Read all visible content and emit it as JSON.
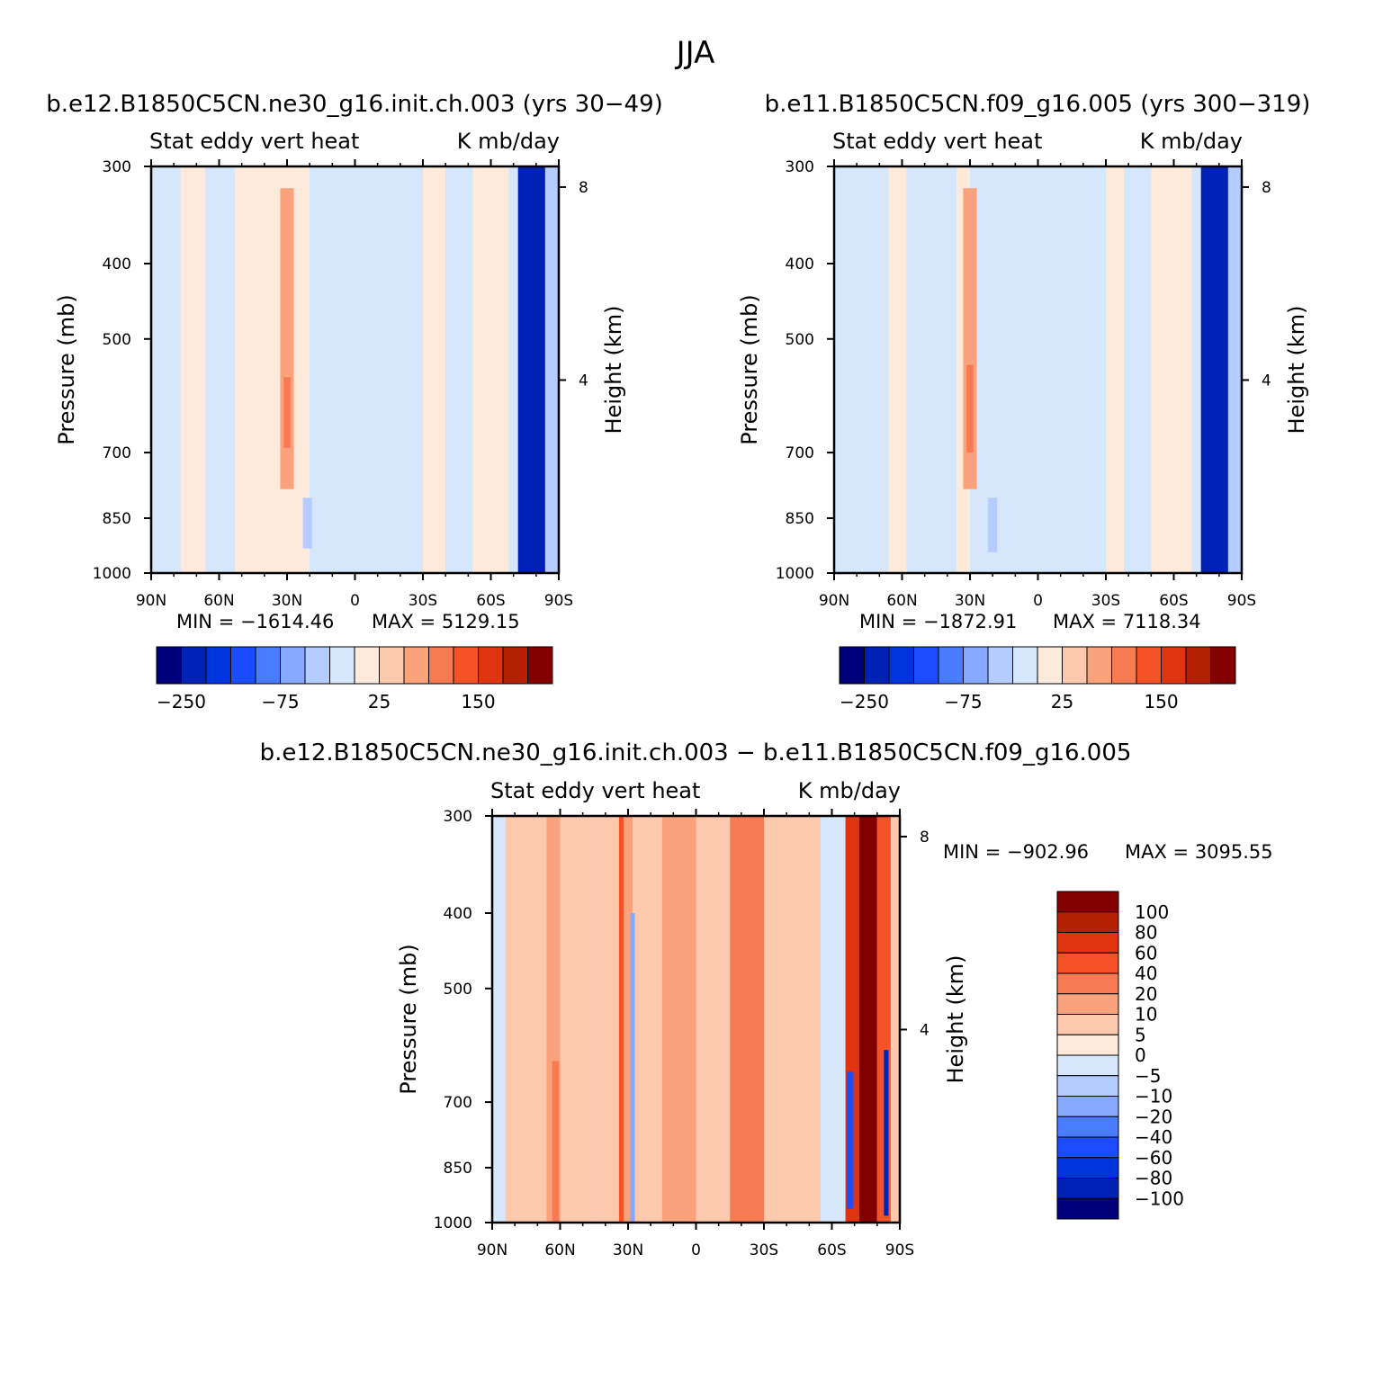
{
  "figure": {
    "title": "JJA"
  },
  "chart_data": [
    {
      "type": "heatmap",
      "title": "b.e12.B1850C5CN.ne30_g16.init.ch.003 (yrs 30−49)",
      "subtitle_left": "Stat eddy vert heat",
      "subtitle_right": "K mb/day",
      "xlabel": "",
      "ylabel": "Pressure (mb)",
      "ylabel_right": "Height (km)",
      "x_ticks": [
        "90N",
        "60N",
        "30N",
        "0",
        "30S",
        "60S",
        "90S"
      ],
      "y_ticks": [
        300,
        400,
        500,
        700,
        850,
        1000
      ],
      "y_ticks_right": [
        8,
        4
      ],
      "ylim": [
        1000,
        300
      ],
      "min_label": "MIN = −1614.46",
      "max_label": "MAX = 5129.15",
      "min": -1614.46,
      "max": 5129.15,
      "colorbar_levels": [
        -250,
        -200,
        -150,
        -100,
        -75,
        -50,
        -25,
        0,
        25,
        50,
        75,
        100,
        150,
        200,
        250
      ],
      "colorbar_labels": [
        "−250",
        "−75",
        "25",
        "150"
      ],
      "bands": [
        {
          "lat0": -90,
          "lat1": -77,
          "level": -5
        },
        {
          "lat0": -77,
          "lat1": -66,
          "level": 5
        },
        {
          "lat0": -66,
          "lat1": -53,
          "level": -5
        },
        {
          "lat0": -53,
          "lat1": -20,
          "level": 5
        },
        {
          "lat0": -20,
          "lat1": -10,
          "level": -5
        },
        {
          "lat0": -10,
          "lat1": 30,
          "level": -5
        },
        {
          "lat0": 30,
          "lat1": 40,
          "level": 5
        },
        {
          "lat0": 40,
          "lat1": 52,
          "level": -5
        },
        {
          "lat0": 52,
          "lat1": 68,
          "level": 5
        },
        {
          "lat0": 68,
          "lat1": 72,
          "level": -25
        },
        {
          "lat0": 72,
          "lat1": 84,
          "level": -250
        },
        {
          "lat0": 84,
          "lat1": 90,
          "level": -50
        }
      ],
      "features": [
        {
          "lat": -30,
          "p0": 320,
          "p1": 780,
          "width": 6,
          "level": 50
        },
        {
          "lat": -30,
          "p0": 560,
          "p1": 690,
          "width": 3,
          "level": 75
        },
        {
          "lat": -21,
          "p0": 800,
          "p1": 930,
          "width": 4,
          "level": -50
        }
      ]
    },
    {
      "type": "heatmap",
      "title": "b.e11.B1850C5CN.f09_g16.005 (yrs 300−319)",
      "subtitle_left": "Stat eddy vert heat",
      "subtitle_right": "K mb/day",
      "xlabel": "",
      "ylabel": "Pressure (mb)",
      "ylabel_right": "Height (km)",
      "x_ticks": [
        "90N",
        "60N",
        "30N",
        "0",
        "30S",
        "60S",
        "90S"
      ],
      "y_ticks": [
        300,
        400,
        500,
        700,
        850,
        1000
      ],
      "y_ticks_right": [
        8,
        4
      ],
      "ylim": [
        1000,
        300
      ],
      "min_label": "MIN = −1872.91",
      "max_label": "MAX = 7118.34",
      "min": -1872.91,
      "max": 7118.34,
      "colorbar_levels": [
        -250,
        -200,
        -150,
        -100,
        -75,
        -50,
        -25,
        0,
        25,
        50,
        75,
        100,
        150,
        200,
        250
      ],
      "colorbar_labels": [
        "−250",
        "−75",
        "25",
        "150"
      ],
      "bands": [
        {
          "lat0": -90,
          "lat1": -66,
          "level": -5
        },
        {
          "lat0": -66,
          "lat1": -58,
          "level": 5
        },
        {
          "lat0": -58,
          "lat1": -36,
          "level": -5
        },
        {
          "lat0": -36,
          "lat1": -30,
          "level": 5
        },
        {
          "lat0": -30,
          "lat1": 30,
          "level": -5
        },
        {
          "lat0": 30,
          "lat1": 38,
          "level": 5
        },
        {
          "lat0": 38,
          "lat1": 50,
          "level": -5
        },
        {
          "lat0": 50,
          "lat1": 68,
          "level": 5
        },
        {
          "lat0": 68,
          "lat1": 72,
          "level": -25
        },
        {
          "lat0": 72,
          "lat1": 84,
          "level": -250
        },
        {
          "lat0": 84,
          "lat1": 90,
          "level": -50
        }
      ],
      "features": [
        {
          "lat": -30,
          "p0": 320,
          "p1": 780,
          "width": 6,
          "level": 50
        },
        {
          "lat": -30,
          "p0": 540,
          "p1": 700,
          "width": 3,
          "level": 75
        },
        {
          "lat": -20,
          "p0": 800,
          "p1": 940,
          "width": 4,
          "level": -50
        }
      ]
    },
    {
      "type": "heatmap",
      "title": "b.e12.B1850C5CN.ne30_g16.init.ch.003 − b.e11.B1850C5CN.f09_g16.005",
      "subtitle_left": "Stat eddy vert heat",
      "subtitle_right": "K mb/day",
      "xlabel": "",
      "ylabel": "Pressure (mb)",
      "ylabel_right": "Height (km)",
      "x_ticks": [
        "90N",
        "60N",
        "30N",
        "0",
        "30S",
        "60S",
        "90S"
      ],
      "y_ticks": [
        300,
        400,
        500,
        700,
        850,
        1000
      ],
      "y_ticks_right": [
        8,
        4
      ],
      "ylim": [
        1000,
        300
      ],
      "min_label": "MIN = −902.96",
      "max_label": "MAX = 3095.55",
      "min": -902.96,
      "max": 3095.55,
      "colorbar_levels": [
        -100,
        -80,
        -60,
        -40,
        -20,
        -10,
        -5,
        0,
        5,
        10,
        20,
        40,
        60,
        80,
        100
      ],
      "colorbar_labels": [
        "100",
        "80",
        "60",
        "40",
        "20",
        "10",
        "5",
        "0",
        "−5",
        "−10",
        "−20",
        "−40",
        "−60",
        "−80",
        "−100"
      ],
      "bands": [
        {
          "lat0": -90,
          "lat1": -84,
          "level": -5
        },
        {
          "lat0": -84,
          "lat1": -66,
          "level": 5
        },
        {
          "lat0": -66,
          "lat1": -60,
          "level": 10
        },
        {
          "lat0": -60,
          "lat1": -45,
          "level": 5
        },
        {
          "lat0": -45,
          "lat1": -34,
          "level": 5
        },
        {
          "lat0": -34,
          "lat1": -28,
          "level": 10
        },
        {
          "lat0": -28,
          "lat1": -15,
          "level": 5
        },
        {
          "lat0": -15,
          "lat1": 0,
          "level": 10
        },
        {
          "lat0": 0,
          "lat1": 15,
          "level": 5
        },
        {
          "lat0": 15,
          "lat1": 30,
          "level": 20
        },
        {
          "lat0": 30,
          "lat1": 55,
          "level": 5
        },
        {
          "lat0": 55,
          "lat1": 66,
          "level": -5
        },
        {
          "lat0": 66,
          "lat1": 72,
          "level": 60
        },
        {
          "lat0": 72,
          "lat1": 80,
          "level": 100
        },
        {
          "lat0": 80,
          "lat1": 86,
          "level": 40
        },
        {
          "lat0": 86,
          "lat1": 90,
          "level": 5
        }
      ],
      "features": [
        {
          "lat": -33,
          "p0": 300,
          "p1": 1000,
          "width": 2,
          "level": 40
        },
        {
          "lat": -28,
          "p0": 400,
          "p1": 1000,
          "width": 2,
          "level": -20
        },
        {
          "lat": -62,
          "p0": 620,
          "p1": 1000,
          "width": 3,
          "level": 20
        },
        {
          "lat": 68,
          "p0": 640,
          "p1": 960,
          "width": 3,
          "level": -60
        },
        {
          "lat": 84,
          "p0": 600,
          "p1": 980,
          "width": 2,
          "level": -100
        }
      ]
    }
  ]
}
